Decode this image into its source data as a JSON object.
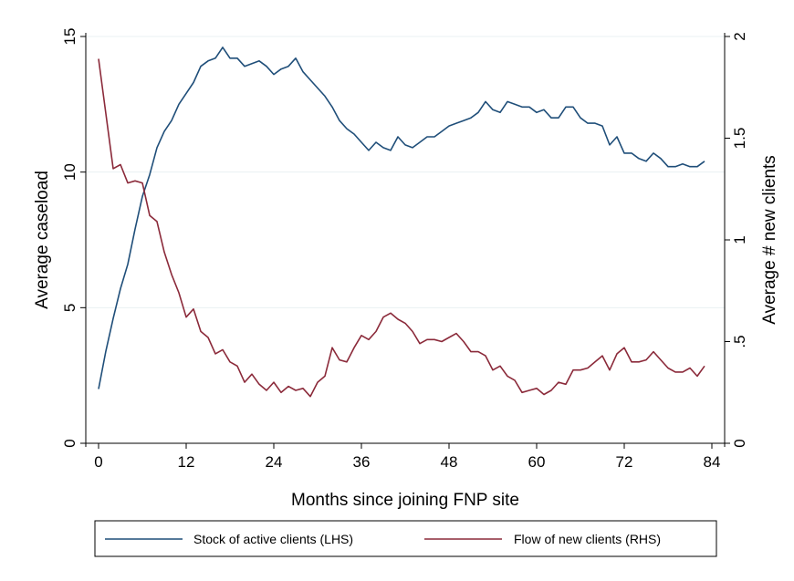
{
  "chart_data": {
    "type": "line",
    "xlabel": "Months since joining FNP site",
    "ylabel_left": "Average caseload",
    "ylabel_right": "Average # new clients",
    "xlim": [
      0,
      84
    ],
    "ylim_left": [
      0,
      15
    ],
    "ylim_right": [
      0,
      2
    ],
    "x_ticks": [
      0,
      12,
      24,
      36,
      48,
      60,
      72,
      84
    ],
    "y_ticks_left": [
      {
        "value": 0,
        "label": "0"
      },
      {
        "value": 5,
        "label": "5"
      },
      {
        "value": 10,
        "label": "10"
      },
      {
        "value": 15,
        "label": "15"
      }
    ],
    "y_ticks_right": [
      {
        "value": 0,
        "label": "0"
      },
      {
        "value": 0.5,
        "label": ".5"
      },
      {
        "value": 1,
        "label": "1"
      },
      {
        "value": 1.5,
        "label": "1.5"
      },
      {
        "value": 2,
        "label": "2"
      }
    ],
    "grid": "horizontal",
    "legend_position": "bottom",
    "series": [
      {
        "name": "Stock of active clients (LHS)",
        "axis": "left",
        "color": "#1f4e79",
        "x": [
          0,
          1,
          2,
          3,
          4,
          5,
          6,
          7,
          8,
          9,
          10,
          11,
          12,
          13,
          14,
          15,
          16,
          17,
          18,
          19,
          20,
          21,
          22,
          23,
          24,
          25,
          26,
          27,
          28,
          29,
          30,
          31,
          32,
          33,
          34,
          35,
          36,
          37,
          38,
          39,
          40,
          41,
          42,
          43,
          44,
          45,
          46,
          47,
          48,
          49,
          50,
          51,
          52,
          53,
          54,
          55,
          56,
          57,
          58,
          59,
          60,
          61,
          62,
          63,
          64,
          65,
          66,
          67,
          68,
          69,
          70,
          71,
          72,
          73,
          74,
          75,
          76,
          77,
          78,
          79,
          80,
          81,
          82,
          83
        ],
        "values": [
          2.0,
          3.4,
          4.6,
          5.7,
          6.6,
          7.9,
          9.1,
          9.9,
          10.9,
          11.5,
          11.9,
          12.5,
          12.9,
          13.3,
          13.9,
          14.1,
          14.2,
          14.6,
          14.2,
          14.2,
          13.9,
          14.0,
          14.1,
          13.9,
          13.6,
          13.8,
          13.9,
          14.2,
          13.7,
          13.4,
          13.1,
          12.8,
          12.4,
          11.9,
          11.6,
          11.4,
          11.1,
          10.8,
          11.1,
          10.9,
          10.8,
          11.3,
          11.0,
          10.9,
          11.1,
          11.3,
          11.3,
          11.5,
          11.7,
          11.8,
          11.9,
          12.0,
          12.2,
          12.6,
          12.3,
          12.2,
          12.6,
          12.5,
          12.4,
          12.4,
          12.2,
          12.3,
          12.0,
          12.0,
          12.4,
          12.4,
          12.0,
          11.8,
          11.8,
          11.7,
          11.0,
          11.3,
          10.7,
          10.7,
          10.5,
          10.4,
          10.7,
          10.5,
          10.2,
          10.2,
          10.3,
          10.2,
          10.2,
          10.4
        ]
      },
      {
        "name": "Flow of new clients (RHS)",
        "axis": "right",
        "color": "#8b2a3a",
        "x": [
          0,
          1,
          2,
          3,
          4,
          5,
          6,
          7,
          8,
          9,
          10,
          11,
          12,
          13,
          14,
          15,
          16,
          17,
          18,
          19,
          20,
          21,
          22,
          23,
          24,
          25,
          26,
          27,
          28,
          29,
          30,
          31,
          32,
          33,
          34,
          35,
          36,
          37,
          38,
          39,
          40,
          41,
          42,
          43,
          44,
          45,
          46,
          47,
          48,
          49,
          50,
          51,
          52,
          53,
          54,
          55,
          56,
          57,
          58,
          59,
          60,
          61,
          62,
          63,
          64,
          65,
          66,
          67,
          68,
          69,
          70,
          71,
          72,
          73,
          74,
          75,
          76,
          77,
          78,
          79,
          80,
          81,
          82,
          83
        ],
        "values": [
          1.89,
          1.62,
          1.35,
          1.37,
          1.28,
          1.29,
          1.28,
          1.12,
          1.09,
          0.94,
          0.83,
          0.74,
          0.62,
          0.66,
          0.55,
          0.52,
          0.44,
          0.46,
          0.4,
          0.38,
          0.3,
          0.34,
          0.29,
          0.26,
          0.3,
          0.25,
          0.28,
          0.26,
          0.27,
          0.23,
          0.3,
          0.33,
          0.47,
          0.41,
          0.4,
          0.47,
          0.53,
          0.51,
          0.55,
          0.62,
          0.64,
          0.61,
          0.59,
          0.55,
          0.49,
          0.51,
          0.51,
          0.5,
          0.52,
          0.54,
          0.5,
          0.45,
          0.45,
          0.43,
          0.36,
          0.38,
          0.33,
          0.31,
          0.25,
          0.26,
          0.27,
          0.24,
          0.26,
          0.3,
          0.29,
          0.36,
          0.36,
          0.37,
          0.4,
          0.43,
          0.36,
          0.44,
          0.47,
          0.4,
          0.4,
          0.41,
          0.45,
          0.41,
          0.37,
          0.35,
          0.35,
          0.37,
          0.33,
          0.38
        ]
      }
    ]
  }
}
